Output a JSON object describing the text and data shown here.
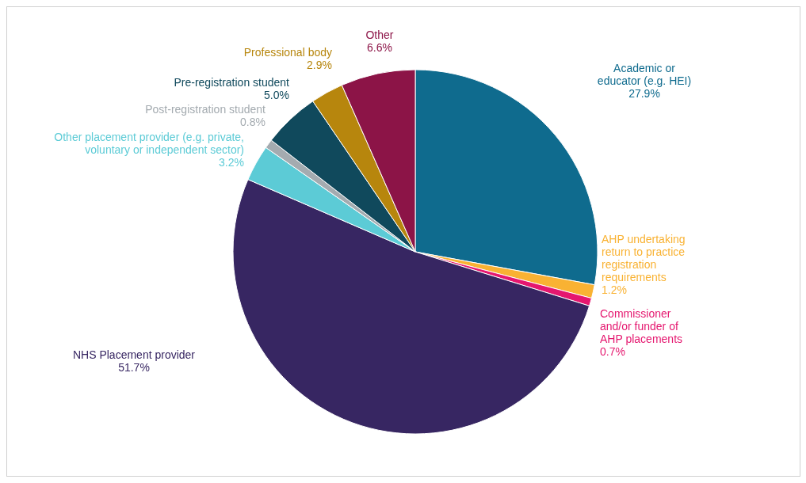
{
  "chart_data": {
    "type": "pie",
    "categories": [
      "Academic or educator (e.g. HEI)",
      "AHP undertaking return to practice registration requirements",
      "Commissioner and/or funder of AHP placements",
      "NHS Placement provider",
      "Other placement provider (e.g. private, voluntary or independent sector)",
      "Post-registration student",
      "Pre-registration student",
      "Professional body",
      "Other"
    ],
    "values": [
      27.9,
      1.2,
      0.7,
      51.7,
      3.2,
      0.8,
      5.0,
      2.9,
      6.6
    ],
    "value_labels": [
      "27.9%",
      "1.2%",
      "0.7%",
      "51.7%",
      "3.2%",
      "0.8%",
      "5.0%",
      "2.9%",
      "6.6%"
    ],
    "colors": [
      "#0f6b8e",
      "#f9b233",
      "#e5176f",
      "#372662",
      "#5ccbd6",
      "#a4abb0",
      "#10495c",
      "#b7860d",
      "#8c1447"
    ]
  }
}
